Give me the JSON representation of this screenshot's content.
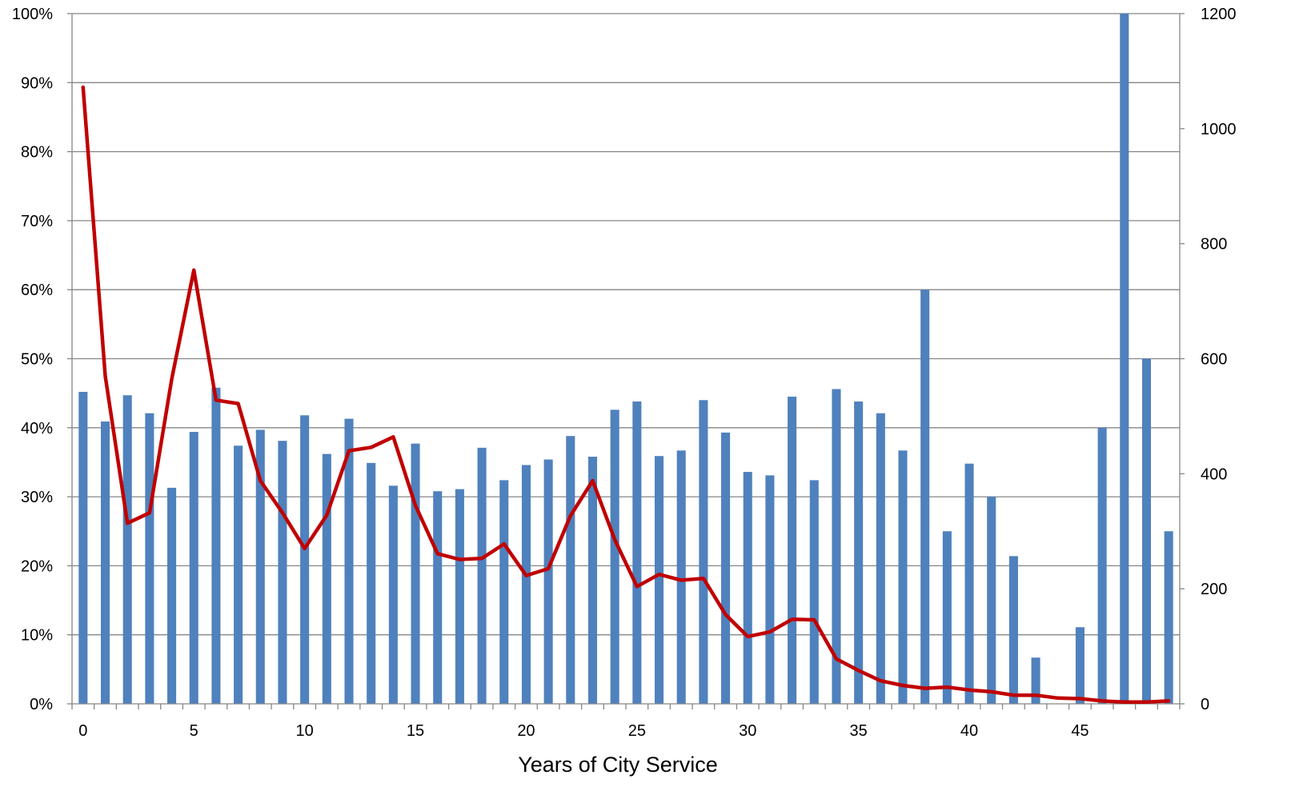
{
  "chart_data": {
    "type": "bar",
    "title": "",
    "xlabel": "Years of City Service",
    "ylabel": "",
    "y2label": "",
    "x": [
      0,
      1,
      2,
      3,
      4,
      5,
      6,
      7,
      8,
      9,
      10,
      11,
      12,
      13,
      14,
      15,
      16,
      17,
      18,
      19,
      20,
      21,
      22,
      23,
      24,
      25,
      26,
      27,
      28,
      29,
      30,
      31,
      32,
      33,
      34,
      35,
      36,
      37,
      38,
      39,
      40,
      41,
      42,
      43,
      44,
      45,
      46,
      47,
      48,
      49
    ],
    "x_ticks": [
      0,
      5,
      10,
      15,
      20,
      25,
      30,
      35,
      40,
      45
    ],
    "x_tick_labels": [
      "0",
      "5",
      "10",
      "15",
      "20",
      "25",
      "30",
      "35",
      "40",
      "45"
    ],
    "ylim": [
      0,
      100
    ],
    "y_ticks": [
      0,
      10,
      20,
      30,
      40,
      50,
      60,
      70,
      80,
      90,
      100
    ],
    "y_tick_labels": [
      "0%",
      "10%",
      "20%",
      "30%",
      "40%",
      "50%",
      "60%",
      "70%",
      "80%",
      "90%",
      "100%"
    ],
    "y2lim": [
      0,
      1200
    ],
    "y2_ticks": [
      0,
      200,
      400,
      600,
      800,
      1000,
      1200
    ],
    "y2_tick_labels": [
      "0",
      "200",
      "400",
      "600",
      "800",
      "1000",
      "1200"
    ],
    "grid": true,
    "legend": "none",
    "series": [
      {
        "type": "bar",
        "axis": "left",
        "color": "#4F81BD",
        "values": [
          45.2,
          40.9,
          44.7,
          42.1,
          31.3,
          39.4,
          45.8,
          37.4,
          39.7,
          38.1,
          41.8,
          36.2,
          41.3,
          34.9,
          31.6,
          37.7,
          30.8,
          31.1,
          37.1,
          32.4,
          34.6,
          35.4,
          38.8,
          35.8,
          42.6,
          43.8,
          35.9,
          36.7,
          44.0,
          39.3,
          33.6,
          33.1,
          44.5,
          32.4,
          45.6,
          43.8,
          42.1,
          36.7,
          60.0,
          25.0,
          34.8,
          30.0,
          21.4,
          6.7,
          0.0,
          11.1,
          40.0,
          100.0,
          50.0,
          25.0
        ]
      },
      {
        "type": "line",
        "axis": "right",
        "color": "#C00000",
        "values": [
          1072,
          570,
          314,
          332,
          565,
          754,
          528,
          522,
          388,
          332,
          270,
          328,
          440,
          446,
          464,
          345,
          261,
          251,
          253,
          278,
          223,
          235,
          327,
          388,
          285,
          204,
          225,
          215,
          218,
          155,
          117,
          125,
          147,
          146,
          78,
          58,
          40,
          32,
          27,
          29,
          24,
          21,
          15,
          15,
          10,
          9,
          5,
          3,
          3,
          5
        ]
      }
    ]
  }
}
